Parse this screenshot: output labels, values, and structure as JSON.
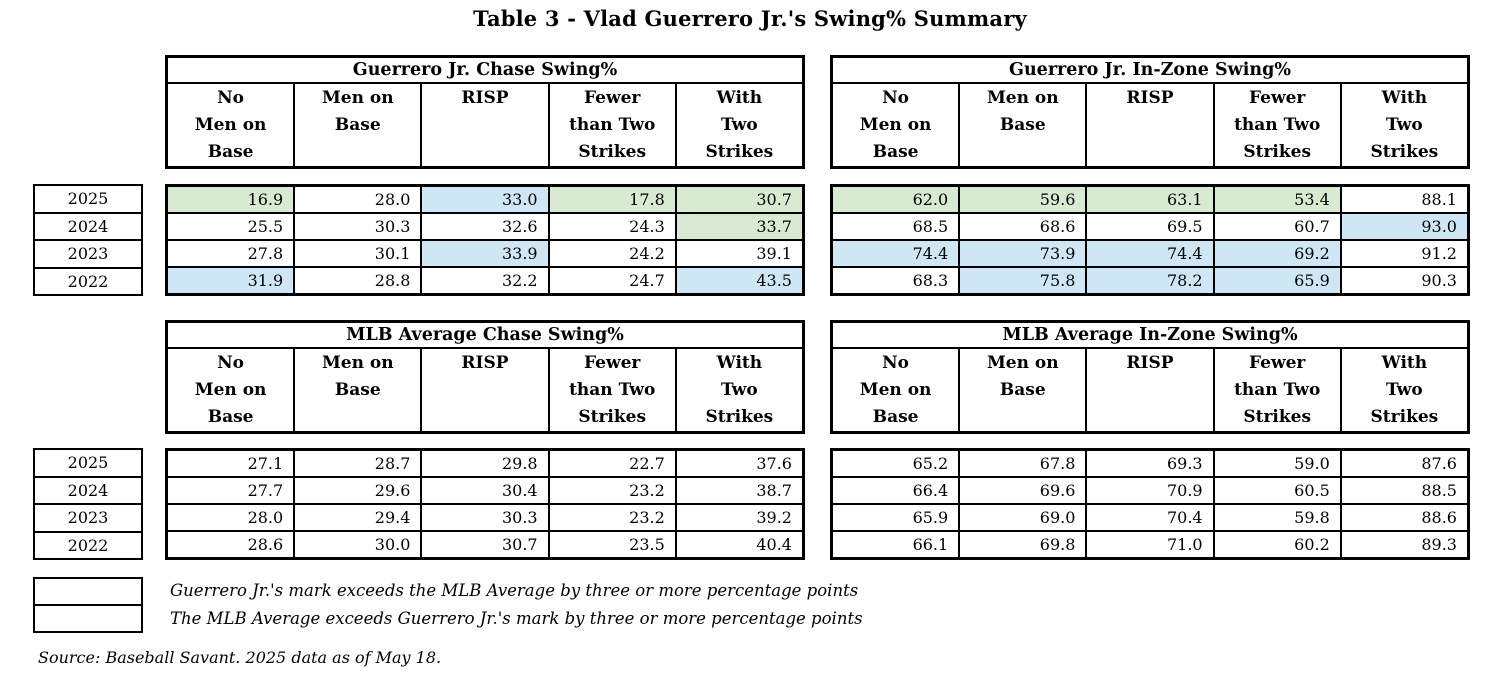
{
  "page_title": "Table 3 - Vlad Guerrero Jr.'s Swing% Summary",
  "colors": {
    "blue": "#cfe7f5",
    "green": "#d9ead3"
  },
  "chart_data": [
    {
      "type": "table",
      "title": "Guerrero Jr. Chase Swing%",
      "columns": [
        "No\nMen on\nBase",
        "Men on\nBase",
        "RISP",
        "Fewer\nthan Two\nStrikes",
        "With\nTwo\nStrikes"
      ],
      "years": [
        "2025",
        "2024",
        "2023",
        "2022"
      ],
      "values": [
        [
          "16.9",
          "28.0",
          "33.0",
          "17.8",
          "30.7"
        ],
        [
          "25.5",
          "30.3",
          "32.6",
          "24.3",
          "33.7"
        ],
        [
          "27.8",
          "30.1",
          "33.9",
          "24.2",
          "39.1"
        ],
        [
          "31.9",
          "28.8",
          "32.2",
          "24.7",
          "43.5"
        ]
      ],
      "highlights": [
        [
          "green",
          "",
          "blue",
          "green",
          "green"
        ],
        [
          "",
          "",
          "",
          "",
          "green"
        ],
        [
          "",
          "",
          "blue",
          "",
          ""
        ],
        [
          "blue",
          "",
          "",
          "",
          "blue"
        ]
      ]
    },
    {
      "type": "table",
      "title": "Guerrero Jr. In-Zone Swing%",
      "columns": [
        "No\nMen on\nBase",
        "Men on\nBase",
        "RISP",
        "Fewer\nthan Two\nStrikes",
        "With\nTwo\nStrikes"
      ],
      "years": [
        "2025",
        "2024",
        "2023",
        "2022"
      ],
      "values": [
        [
          "62.0",
          "59.6",
          "63.1",
          "53.4",
          "88.1"
        ],
        [
          "68.5",
          "68.6",
          "69.5",
          "60.7",
          "93.0"
        ],
        [
          "74.4",
          "73.9",
          "74.4",
          "69.2",
          "91.2"
        ],
        [
          "68.3",
          "75.8",
          "78.2",
          "65.9",
          "90.3"
        ]
      ],
      "highlights": [
        [
          "green",
          "green",
          "green",
          "green",
          ""
        ],
        [
          "",
          "",
          "",
          "",
          "blue"
        ],
        [
          "blue",
          "blue",
          "blue",
          "blue",
          ""
        ],
        [
          "",
          "blue",
          "blue",
          "blue",
          ""
        ]
      ]
    },
    {
      "type": "table",
      "title": "MLB Average Chase Swing%",
      "columns": [
        "No\nMen on\nBase",
        "Men on\nBase",
        "RISP",
        "Fewer\nthan Two\nStrikes",
        "With\nTwo\nStrikes"
      ],
      "years": [
        "2025",
        "2024",
        "2023",
        "2022"
      ],
      "values": [
        [
          "27.1",
          "28.7",
          "29.8",
          "22.7",
          "37.6"
        ],
        [
          "27.7",
          "29.6",
          "30.4",
          "23.2",
          "38.7"
        ],
        [
          "28.0",
          "29.4",
          "30.3",
          "23.2",
          "39.2"
        ],
        [
          "28.6",
          "30.0",
          "30.7",
          "23.5",
          "40.4"
        ]
      ]
    },
    {
      "type": "table",
      "title": "MLB Average In-Zone Swing%",
      "columns": [
        "No\nMen on\nBase",
        "Men on\nBase",
        "RISP",
        "Fewer\nthan Two\nStrikes",
        "With\nTwo\nStrikes"
      ],
      "years": [
        "2025",
        "2024",
        "2023",
        "2022"
      ],
      "values": [
        [
          "65.2",
          "67.8",
          "69.3",
          "59.0",
          "87.6"
        ],
        [
          "66.4",
          "69.6",
          "70.9",
          "60.5",
          "88.5"
        ],
        [
          "65.9",
          "69.0",
          "70.4",
          "59.8",
          "88.6"
        ],
        [
          "66.1",
          "69.8",
          "71.0",
          "60.2",
          "89.3"
        ]
      ]
    }
  ],
  "legend": {
    "items": [
      {
        "color": "blue",
        "label": "Guerrero Jr.'s mark exceeds the  MLB Average by three or more percentage points"
      },
      {
        "color": "green",
        "label": "The MLB Average exceeds Guerrero Jr.'s mark by three or more percentage points"
      }
    ]
  },
  "source_note": "Source: Baseball Savant. 2025 data as of May 18."
}
